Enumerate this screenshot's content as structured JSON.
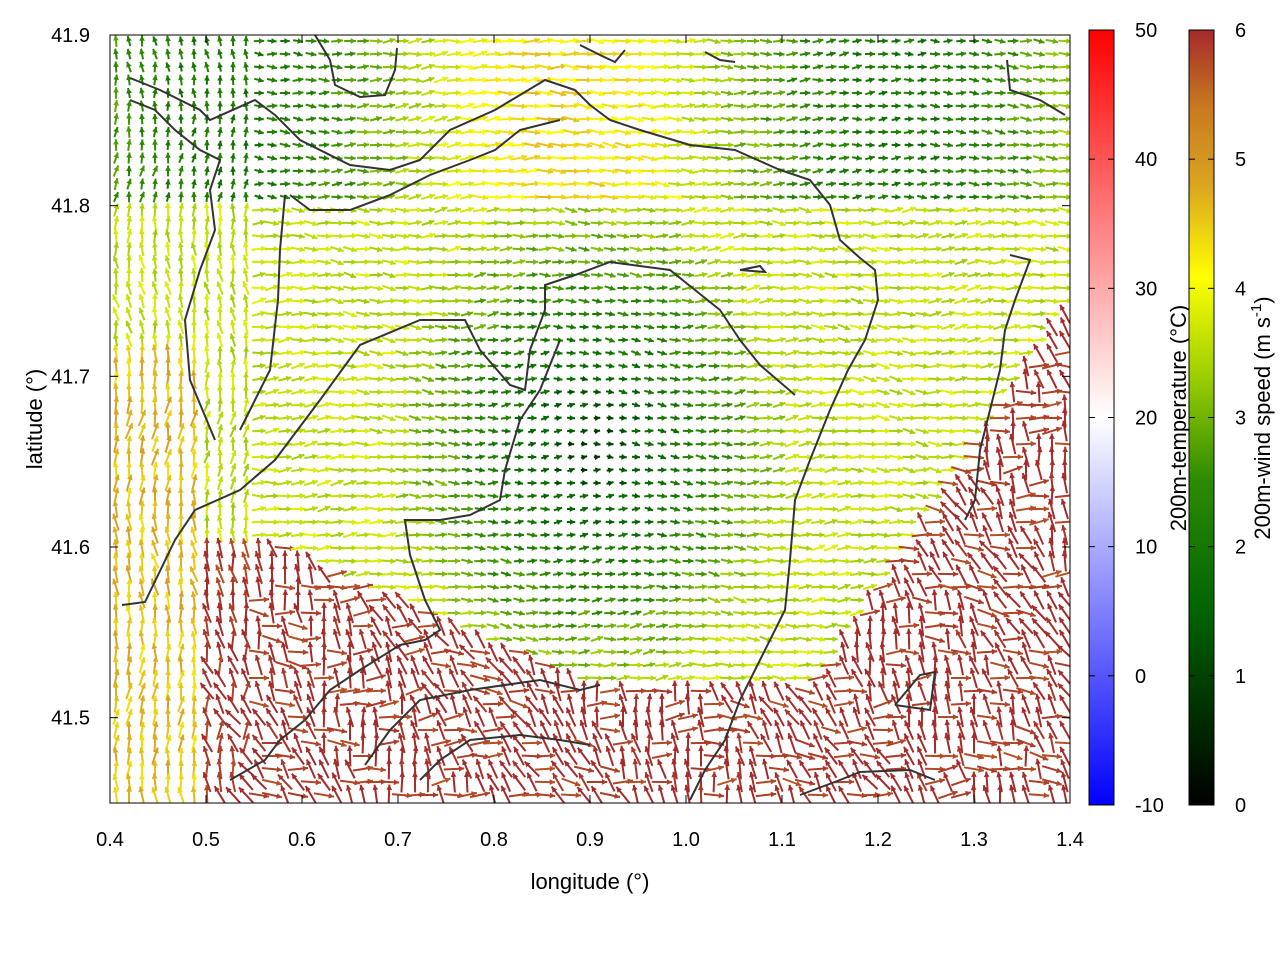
{
  "chart_data": {
    "type": "vector field",
    "title": "",
    "xlabel": "longitude (°)",
    "ylabel": "latitude (°)",
    "xlim": [
      0.4,
      1.4
    ],
    "ylim": [
      41.45,
      41.9
    ],
    "x_ticks": [
      "0.4",
      "0.5",
      "0.6",
      "0.7",
      "0.8",
      "0.9",
      "1.0",
      "1.1",
      "1.2",
      "1.3",
      "1.4"
    ],
    "y_ticks": [
      "41.5",
      "41.6",
      "41.7",
      "41.8",
      "41.9"
    ],
    "grid": false,
    "colorbars": [
      {
        "name": "temperature",
        "label": "200m-temperature (°C)",
        "range": [
          -10,
          50
        ],
        "ticks": [
          "50",
          "40",
          "30",
          "20",
          "10",
          "0",
          "-10"
        ],
        "colors": [
          "#0000ff",
          "#ffffff",
          "#ff0000"
        ]
      },
      {
        "name": "wind",
        "label_main": "200m-wind speed (m s",
        "label_sup": "-1",
        "label_end": ")",
        "range": [
          0,
          6
        ],
        "ticks": [
          "6",
          "5",
          "4",
          "3",
          "2",
          "1",
          "0"
        ],
        "colors": [
          "#000000",
          "#006400",
          "#2e8b00",
          "#9acd00",
          "#ffff00",
          "#daa520",
          "#c77a1f",
          "#a52a2a"
        ]
      }
    ],
    "wind_regions": [
      {
        "area": "south-east (lon 1.1–1.4, lat 41.45–41.72)",
        "speed": 6
      },
      {
        "area": "south-west (lon 0.5–0.9, lat 41.45–41.62)",
        "speed": 6
      },
      {
        "area": "west edge (lon 0.4–0.5)",
        "speed": 4.5
      },
      {
        "area": "central basin (lon 0.75–1.05, lat 41.55–41.75)",
        "speed": 1
      },
      {
        "area": "north (lat 41.8–41.9)",
        "speed": 3.5
      }
    ]
  }
}
